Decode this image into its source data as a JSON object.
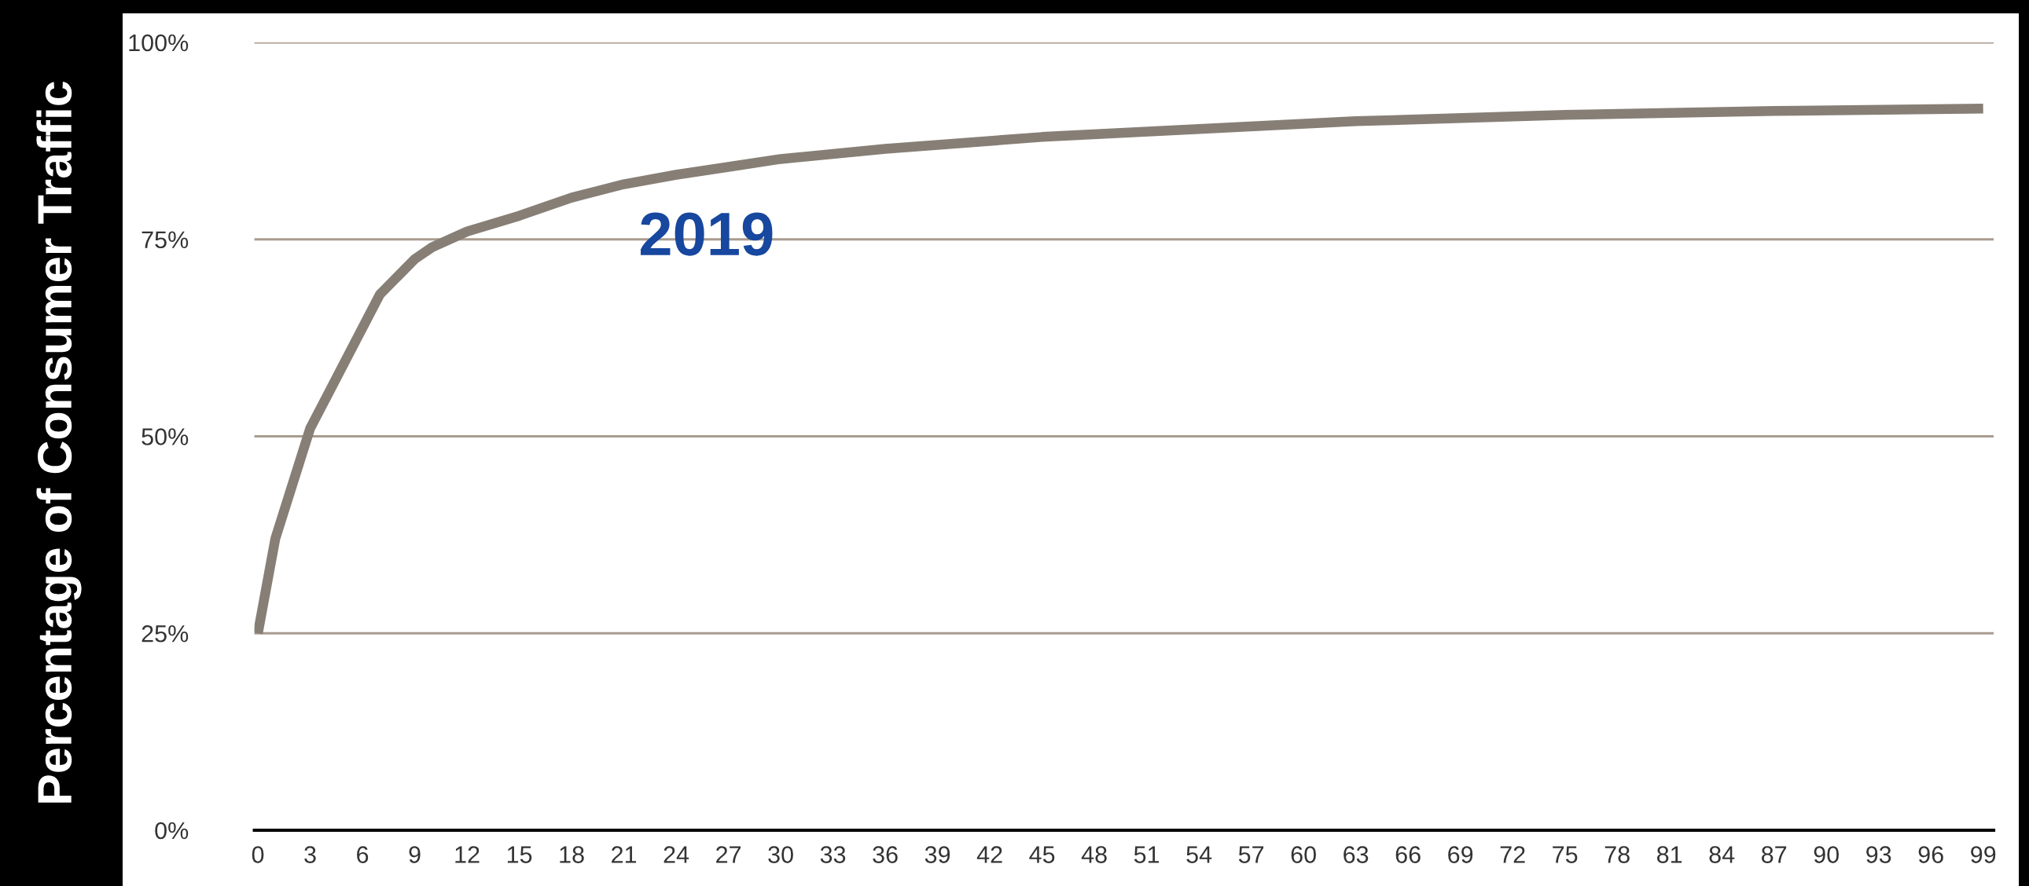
{
  "chart_data": {
    "type": "line",
    "ylabel": "Percentage of Consumer Traffic",
    "x": [
      0,
      1,
      3,
      5,
      7,
      9,
      10,
      12,
      15,
      18,
      21,
      24,
      27,
      30,
      36,
      45,
      54,
      63,
      75,
      87,
      99
    ],
    "series": [
      {
        "color": "#877f76",
        "values": [
          25,
          37,
          51,
          59.5,
          68,
          72.5,
          74,
          76,
          78,
          80.3,
          82,
          83.2,
          84.2,
          85.2,
          86.5,
          88,
          89,
          90,
          90.8,
          91.3,
          91.6
        ]
      }
    ],
    "annotations": [
      "2019"
    ],
    "xlim": [
      -0.2,
      99.6
    ],
    "xticks": [
      0,
      3,
      6,
      9,
      12,
      15,
      18,
      21,
      24,
      27,
      30,
      33,
      36,
      39,
      42,
      45,
      48,
      51,
      54,
      57,
      60,
      63,
      66,
      69,
      72,
      75,
      78,
      81,
      84,
      87,
      90,
      93,
      96,
      99
    ],
    "ylim": [
      0,
      100
    ],
    "yticks": [
      {
        "value": 0,
        "label": "0%"
      },
      {
        "value": 25,
        "label": "25%"
      },
      {
        "value": 50,
        "label": "50%"
      },
      {
        "value": 75,
        "label": "75%"
      },
      {
        "value": 100,
        "label": "100%"
      }
    ],
    "grid": "y",
    "marker": "none",
    "line_style": "solid"
  }
}
